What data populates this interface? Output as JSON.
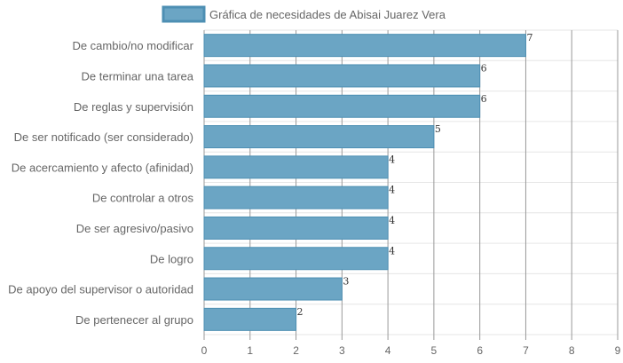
{
  "chart_data": {
    "type": "bar",
    "orientation": "horizontal",
    "categories": [
      "De cambio/no modificar",
      "De terminar una tarea",
      "De reglas y supervisión",
      "De ser notificado (ser considerado)",
      "De acercamiento y afecto (afinidad)",
      "De controlar a otros",
      "De ser agresivo/pasivo",
      "De logro",
      "De apoyo del supervisor o autoridad",
      "De pertenecer al grupo"
    ],
    "series": [
      {
        "name": "Gráfica de necesidades de Abisai Juarez Vera",
        "values": [
          7,
          6,
          6,
          5,
          4,
          4,
          4,
          4,
          3,
          2
        ]
      }
    ],
    "xlim": [
      0,
      9
    ],
    "xticks": [
      0,
      1,
      2,
      3,
      4,
      5,
      6,
      7,
      8,
      9
    ],
    "grid": true,
    "legend_position": "top-center",
    "colors": {
      "bar_fill": "#6ba5c4",
      "bar_border": "#4d8fb3",
      "grid": "#e6e6e6",
      "vertical_grid": "#999999"
    }
  }
}
